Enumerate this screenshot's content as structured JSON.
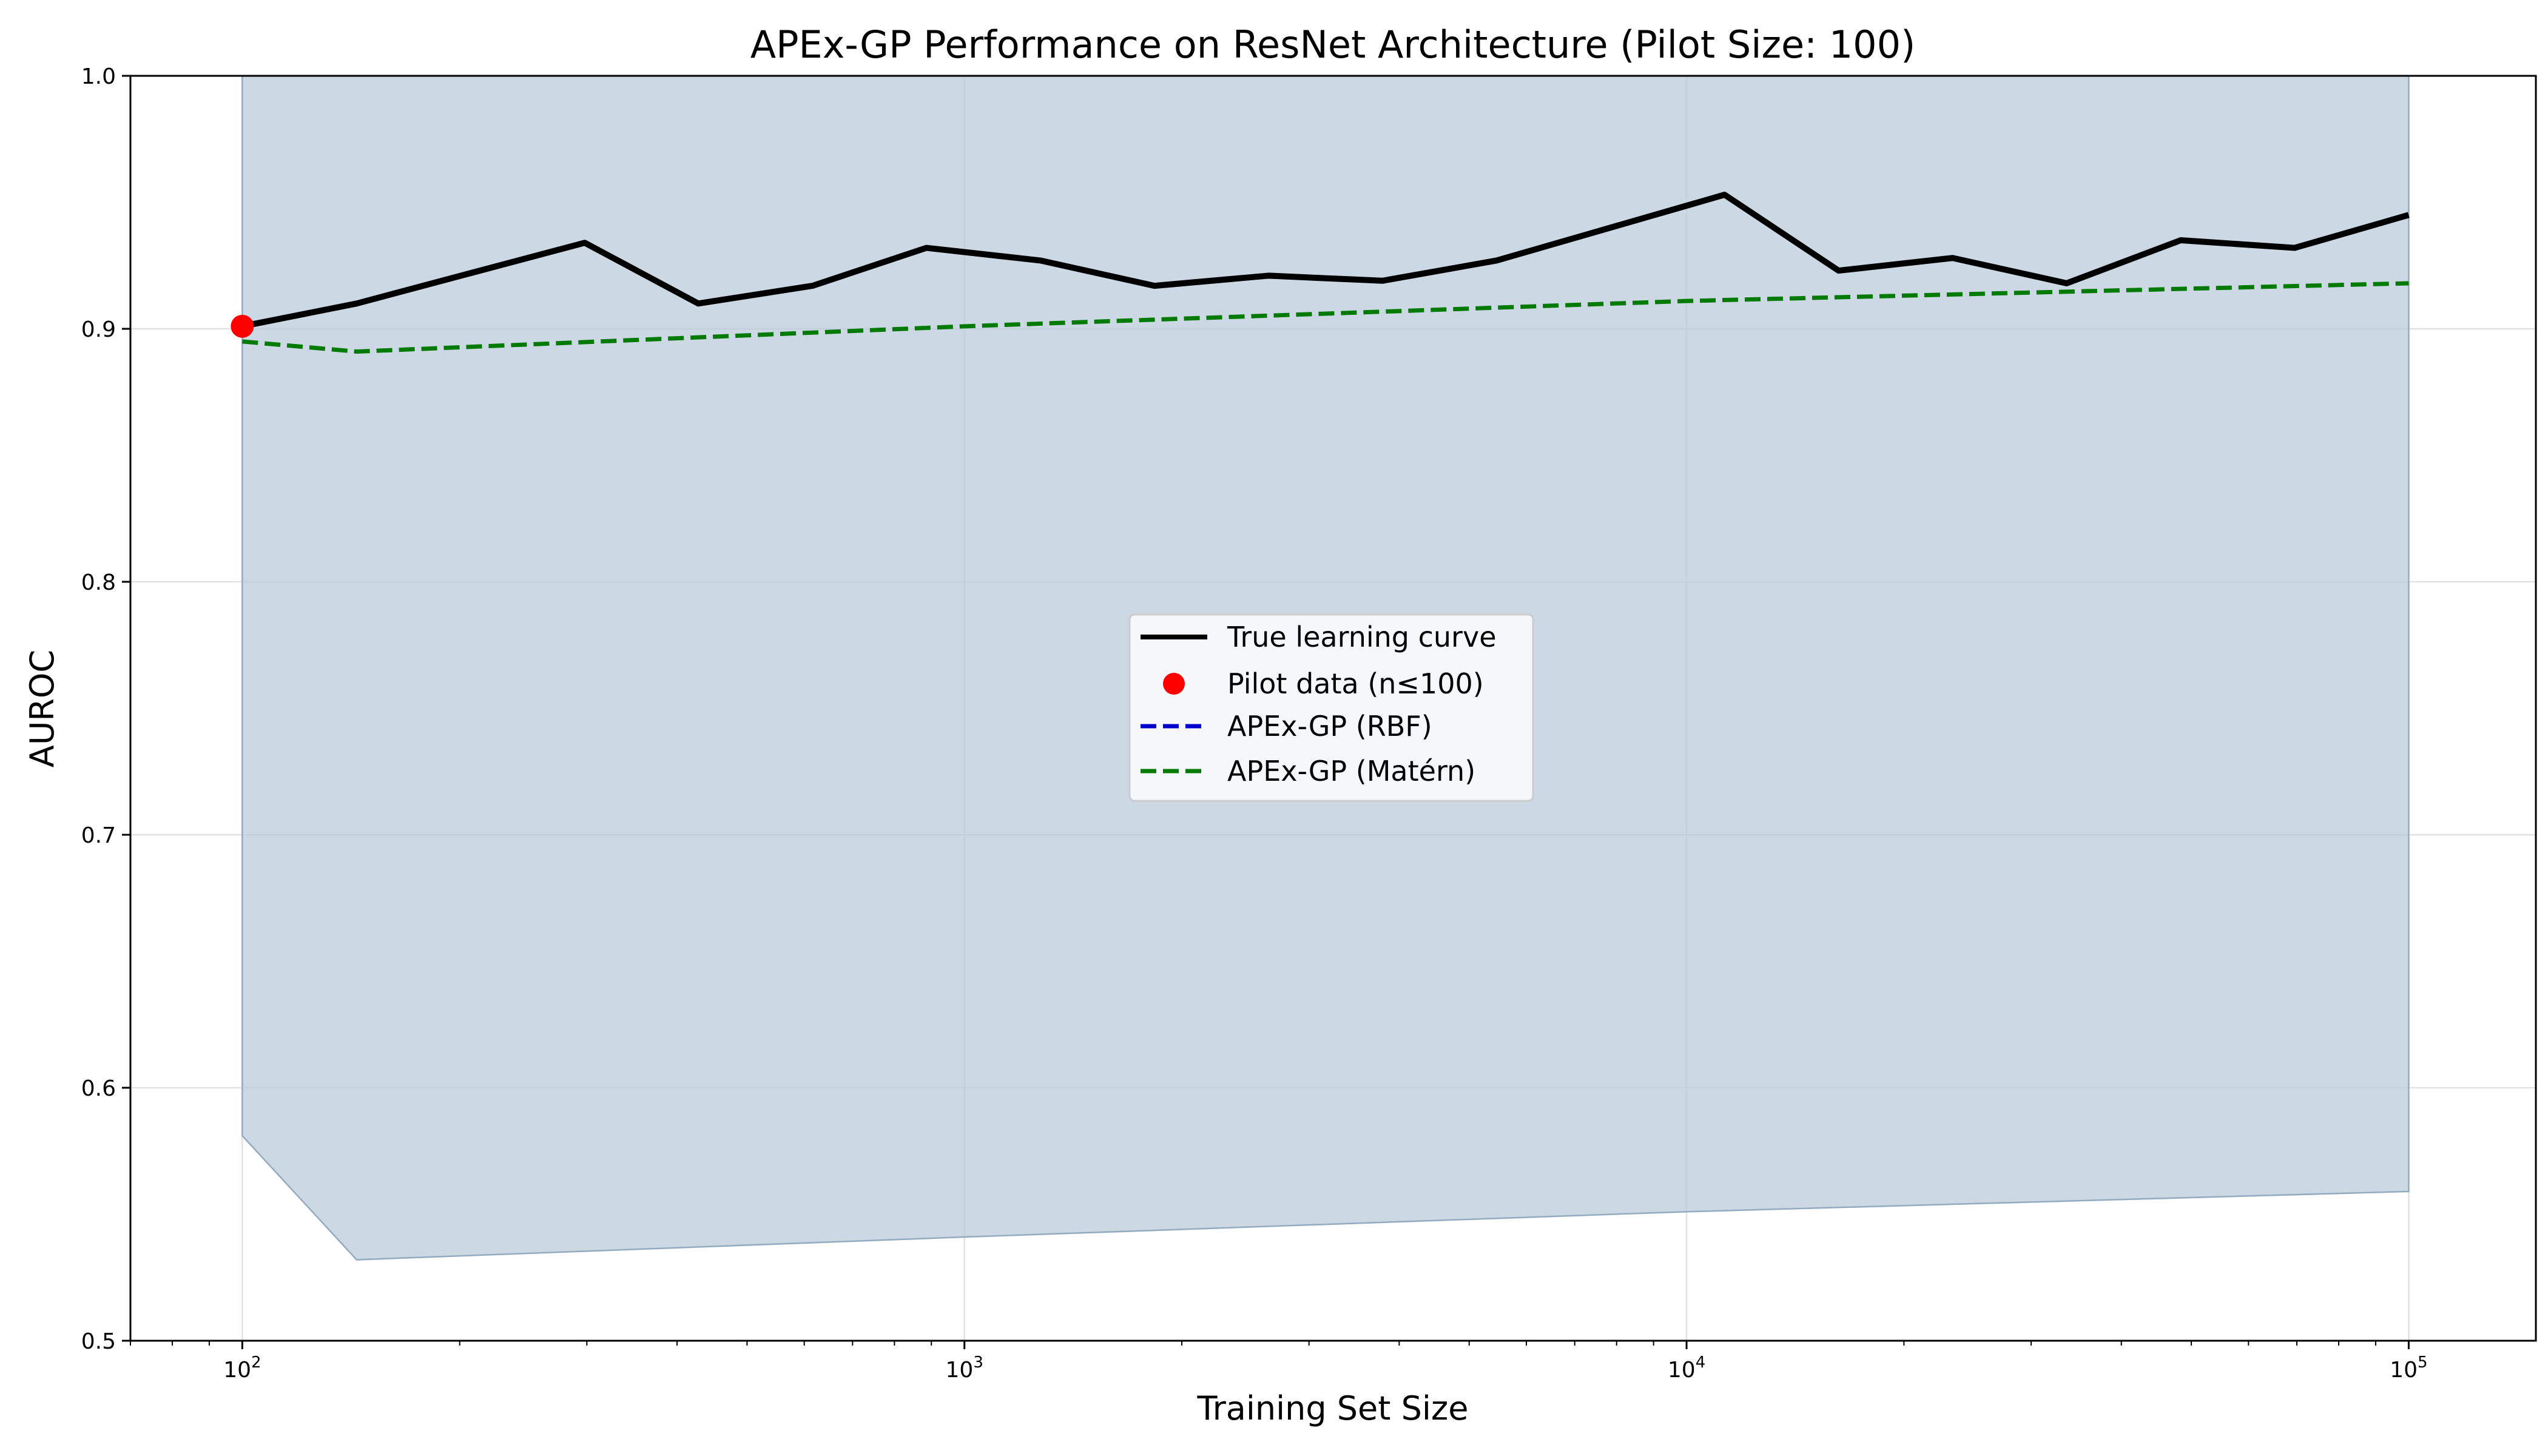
{
  "chart_data": {
    "type": "line",
    "title": "APEx-GP Performance on ResNet Architecture (Pilot Size: 100)",
    "xlabel": "Training Set Size",
    "ylabel": "AUROC",
    "xscale": "log",
    "xlim": [
      70,
      150000
    ],
    "ylim": [
      0.5,
      1.0
    ],
    "grid": true,
    "legend_position": "center",
    "x_ticks": [
      {
        "value": 100,
        "base": "10",
        "exp": "2"
      },
      {
        "value": 1000,
        "base": "10",
        "exp": "3"
      },
      {
        "value": 10000,
        "base": "10",
        "exp": "4"
      },
      {
        "value": 100000,
        "base": "10",
        "exp": "5"
      }
    ],
    "y_ticks": [
      {
        "value": 0.5,
        "label": "0.5"
      },
      {
        "value": 0.6,
        "label": "0.6"
      },
      {
        "value": 0.7,
        "label": "0.7"
      },
      {
        "value": 0.8,
        "label": "0.8"
      },
      {
        "value": 0.9,
        "label": "0.9"
      },
      {
        "value": 1.0,
        "label": "1.0"
      }
    ],
    "series": [
      {
        "name": "True learning curve",
        "kind": "line",
        "color": "#000000",
        "style": "solid",
        "x": [
          100,
          144,
          207,
          298,
          428,
          616,
          886,
          1274,
          1833,
          2637,
          3793,
          5456,
          7848,
          11288,
          16237,
          23357,
          33598,
          48329,
          69519,
          100000
        ],
        "y": [
          0.901,
          0.91,
          0.922,
          0.934,
          0.91,
          0.917,
          0.932,
          0.927,
          0.917,
          0.921,
          0.919,
          0.927,
          0.94,
          0.953,
          0.923,
          0.928,
          0.918,
          0.935,
          0.932,
          0.945
        ]
      },
      {
        "name": "Pilot data (n≤100)",
        "kind": "scatter",
        "color": "#ff0000",
        "x": [
          100
        ],
        "y": [
          0.901
        ]
      },
      {
        "name": "APEx-GP (RBF)",
        "kind": "line",
        "color": "#0000cc",
        "style": "dashed",
        "x": [],
        "y": []
      },
      {
        "name": "APEx-GP (Matérn)",
        "kind": "line",
        "color": "#007a00",
        "style": "dashed",
        "x": [
          100,
          144,
          1000,
          10000,
          100000
        ],
        "y": [
          0.895,
          0.891,
          0.901,
          0.911,
          0.918
        ]
      }
    ],
    "confidence_band": {
      "color": "#b8c9da",
      "edge_color": "#94aac0",
      "x": [
        100,
        144,
        1000,
        10000,
        100000
      ],
      "lower": [
        0.581,
        0.532,
        0.541,
        0.551,
        0.559
      ],
      "upper": [
        1.0,
        1.0,
        1.0,
        1.0,
        1.0
      ]
    }
  }
}
